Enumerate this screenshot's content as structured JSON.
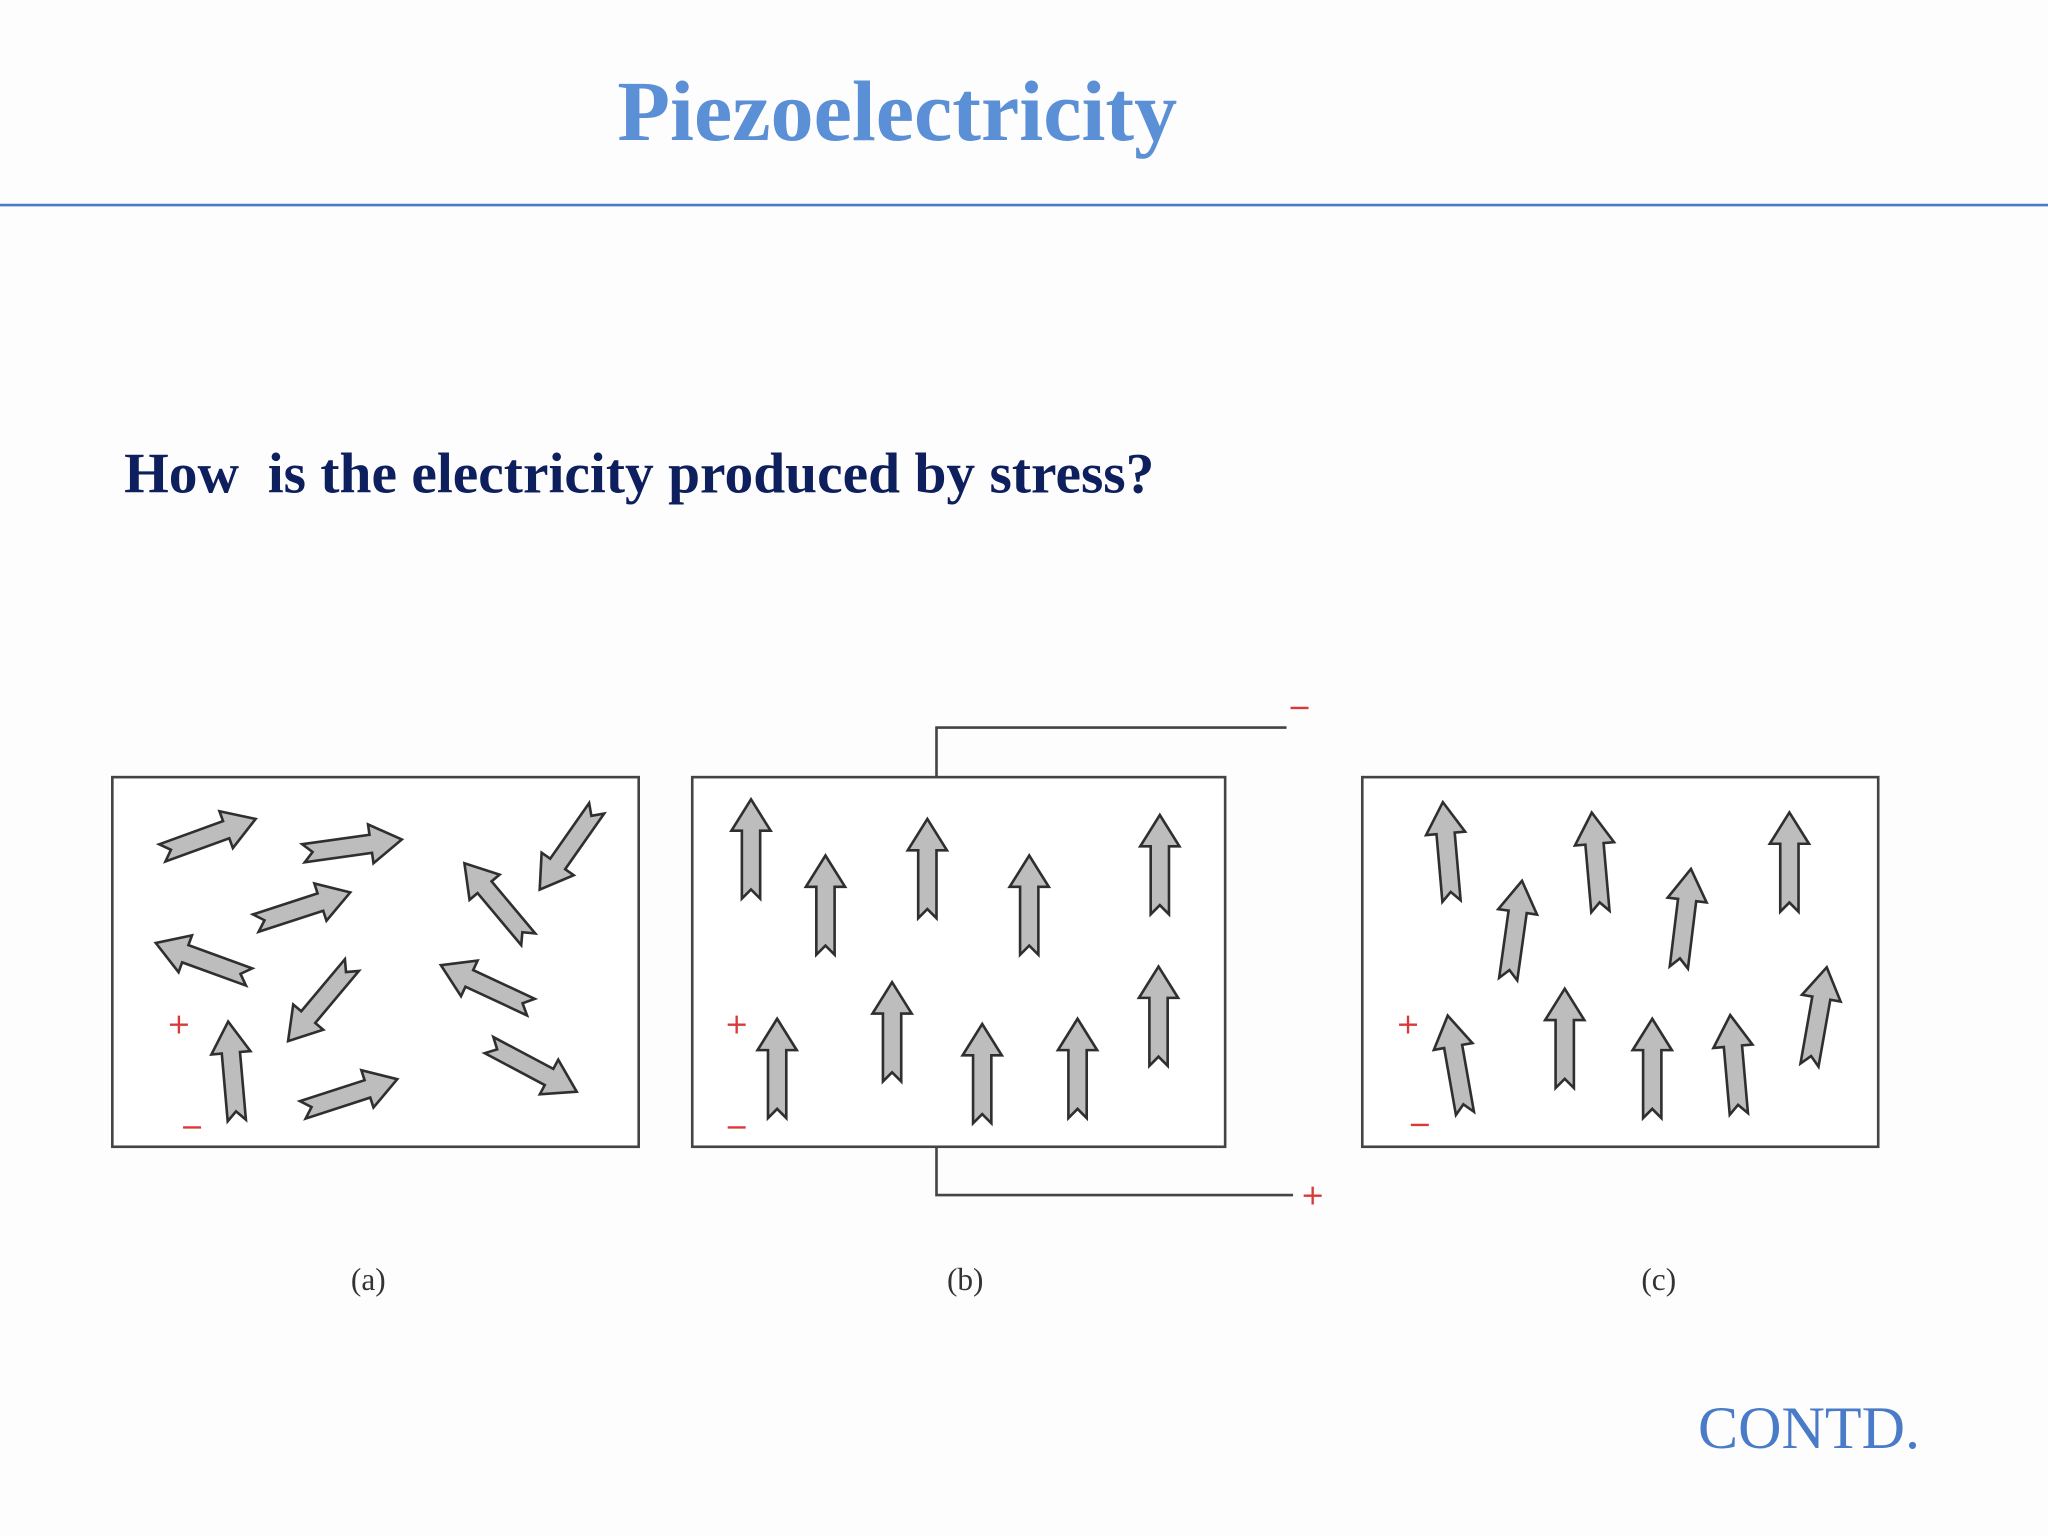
{
  "title": "Piezoelectricity",
  "question": "How  is the electricity produced by stress?",
  "panels": [
    {
      "label": "(a)",
      "plus": "+",
      "minus": "−"
    },
    {
      "label": "(b)",
      "plus": "+",
      "minus": "−",
      "terminal_top": "−",
      "terminal_bottom": "+"
    },
    {
      "label": "(c)",
      "plus": "+",
      "minus": "−"
    }
  ],
  "footer": "CONTD."
}
